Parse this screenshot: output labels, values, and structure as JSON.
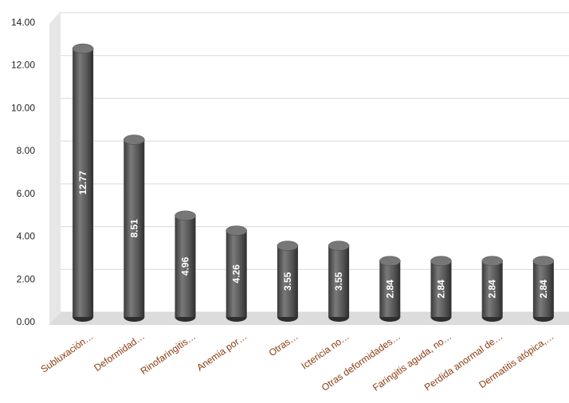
{
  "chart_data": {
    "type": "bar",
    "categories": [
      "Subluxación…",
      "Deformidad…",
      "Rinofaringitis…",
      "Anemia por…",
      "Otras…",
      "Ictericia no…",
      "Otras deformidades…",
      "Faringitis aguda, no…",
      "Perdida anormal de…",
      "Dermatitis atópica,…"
    ],
    "values": [
      12.77,
      8.51,
      4.96,
      4.26,
      3.55,
      3.55,
      2.84,
      2.84,
      2.84,
      2.84
    ],
    "color": "#555555",
    "ylim": [
      0,
      14
    ],
    "yticks": [
      {
        "value": 0,
        "label": "0.00"
      },
      {
        "value": 2,
        "label": "2.00"
      },
      {
        "value": 4,
        "label": "4.00"
      },
      {
        "value": 6,
        "label": "6.00"
      },
      {
        "value": 8,
        "label": "8.00"
      },
      {
        "value": 10,
        "label": "10.00"
      },
      {
        "value": 12,
        "label": "12.00"
      },
      {
        "value": 14,
        "label": "14.00"
      }
    ],
    "grid": true
  }
}
